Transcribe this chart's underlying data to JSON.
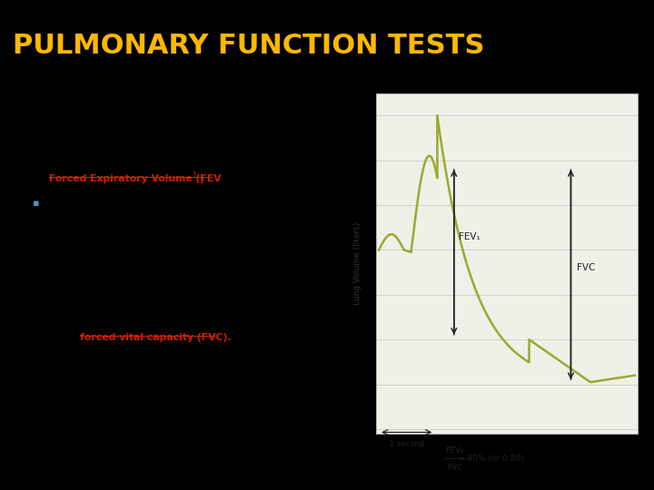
{
  "title": "PULMONARY FUNCTION TESTS",
  "title_color": "#FFB800",
  "title_bg": "#000000",
  "title_fontsize": 22,
  "content_bg": "#FFFF00",
  "slide_bg": "#000000",
  "text_color": "#000000",
  "heading": "Pulmonary function tests",
  "graph_bg": "#f0f0e8",
  "curve_color": "#9aaa30",
  "annotation_color": "#222222",
  "grid_color": "#cccccc",
  "ylabel": "Lung Volume (liters)",
  "yticks": [
    0,
    1,
    2,
    3,
    4,
    5,
    6,
    7
  ],
  "ymax": 7.5,
  "ymin": -0.1,
  "fev1_label": "FEV₁",
  "fvc_label": "FVC",
  "one_second_label": "1 second"
}
